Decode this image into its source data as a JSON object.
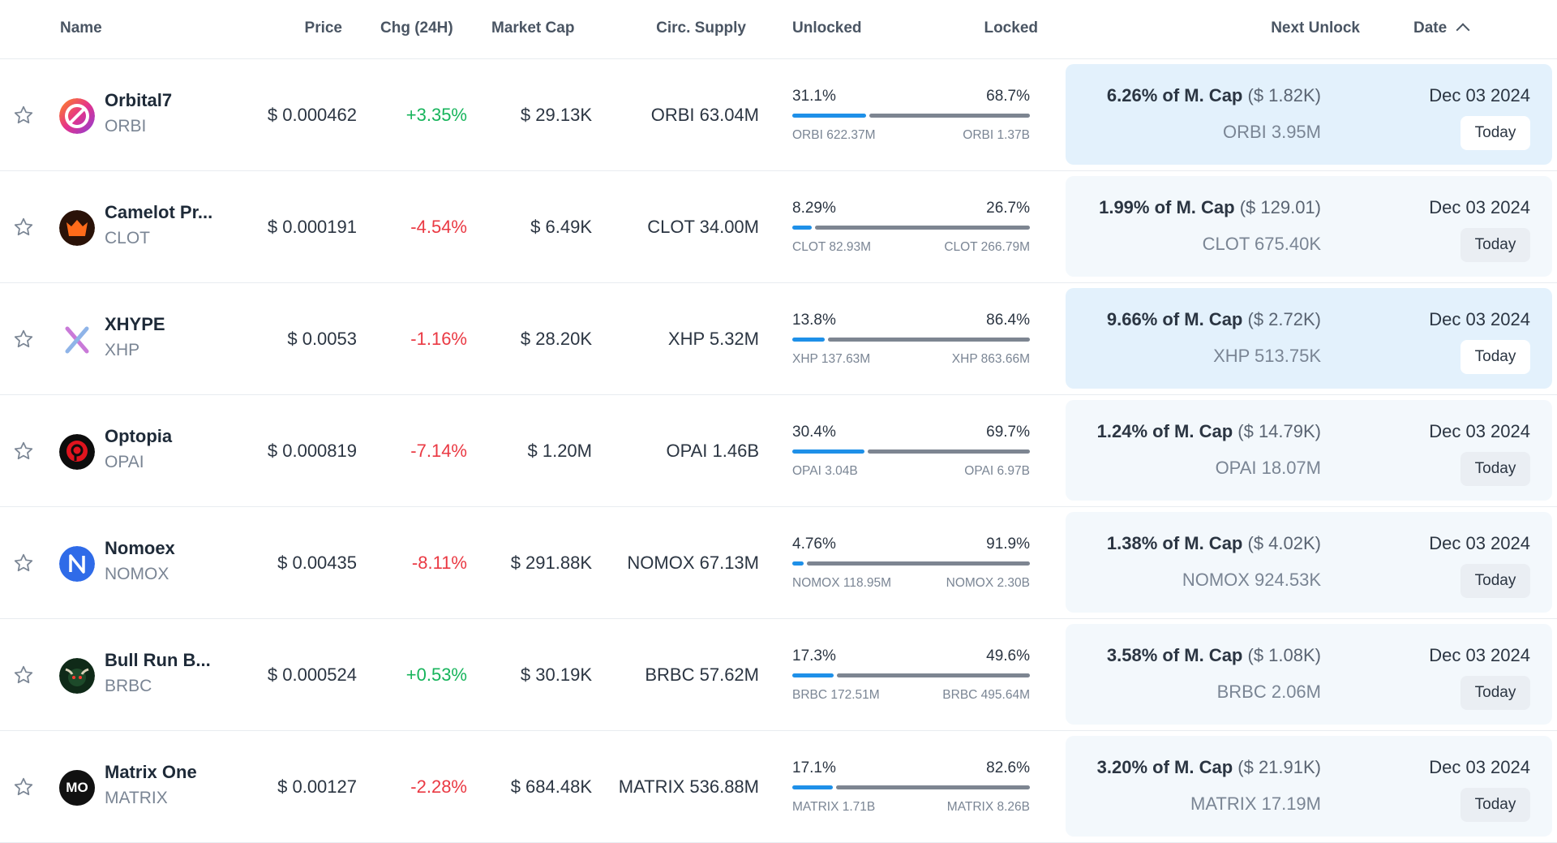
{
  "header": {
    "name": "Name",
    "price": "Price",
    "chg": "Chg (24H)",
    "market_cap": "Market Cap",
    "circ_supply": "Circ. Supply",
    "unlocked": "Unlocked",
    "locked": "Locked",
    "next_unlock": "Next Unlock",
    "date": "Date"
  },
  "colors": {
    "positive": "#16b45b",
    "negative": "#ea3943",
    "unlocked_bar": "#1e90e8",
    "locked_bar": "#7d8591",
    "highlight_card": "#e3f1fc",
    "card": "#f3f8fc"
  },
  "rows": [
    {
      "name": "Orbital7",
      "symbol": "ORBI",
      "price": "$ 0.000462",
      "chg": "+3.35%",
      "chg_dir": "pos",
      "market_cap": "$ 29.13K",
      "circ_supply": "ORBI 63.04M",
      "unlocked_pct": "31.1%",
      "locked_pct": "68.7%",
      "unlocked_frac": 0.311,
      "locked_frac": 0.687,
      "unlocked_amt": "ORBI 622.37M",
      "locked_amt": "ORBI 1.37B",
      "next_pct": "6.26% of M. Cap",
      "next_usd": "($ 1.82K)",
      "next_tokens": "ORBI 3.95M",
      "date": "Dec 03 2024",
      "when": "Today",
      "highlight": true,
      "icon": "orbital7-logo-icon"
    },
    {
      "name": "Camelot Pr...",
      "symbol": "CLOT",
      "price": "$ 0.000191",
      "chg": "-4.54%",
      "chg_dir": "neg",
      "market_cap": "$ 6.49K",
      "circ_supply": "CLOT 34.00M",
      "unlocked_pct": "8.29%",
      "locked_pct": "26.7%",
      "unlocked_frac": 0.0829,
      "locked_frac": 0.267,
      "unlocked_amt": "CLOT 82.93M",
      "locked_amt": "CLOT 266.79M",
      "next_pct": "1.99% of M. Cap",
      "next_usd": "($ 129.01)",
      "next_tokens": "CLOT 675.40K",
      "date": "Dec 03 2024",
      "when": "Today",
      "highlight": false,
      "icon": "camelot-logo-icon"
    },
    {
      "name": "XHYPE",
      "symbol": "XHP",
      "price": "$ 0.0053",
      "chg": "-1.16%",
      "chg_dir": "neg",
      "market_cap": "$ 28.20K",
      "circ_supply": "XHP 5.32M",
      "unlocked_pct": "13.8%",
      "locked_pct": "86.4%",
      "unlocked_frac": 0.138,
      "locked_frac": 0.864,
      "unlocked_amt": "XHP 137.63M",
      "locked_amt": "XHP 863.66M",
      "next_pct": "9.66% of M. Cap",
      "next_usd": "($ 2.72K)",
      "next_tokens": "XHP 513.75K",
      "date": "Dec 03 2024",
      "when": "Today",
      "highlight": true,
      "icon": "xhype-logo-icon"
    },
    {
      "name": "Optopia",
      "symbol": "OPAI",
      "price": "$ 0.000819",
      "chg": "-7.14%",
      "chg_dir": "neg",
      "market_cap": "$ 1.20M",
      "circ_supply": "OPAI 1.46B",
      "unlocked_pct": "30.4%",
      "locked_pct": "69.7%",
      "unlocked_frac": 0.304,
      "locked_frac": 0.697,
      "unlocked_amt": "OPAI 3.04B",
      "locked_amt": "OPAI 6.97B",
      "next_pct": "1.24% of M. Cap",
      "next_usd": "($ 14.79K)",
      "next_tokens": "OPAI 18.07M",
      "date": "Dec 03 2024",
      "when": "Today",
      "highlight": false,
      "icon": "optopia-logo-icon"
    },
    {
      "name": "Nomoex",
      "symbol": "NOMOX",
      "price": "$ 0.00435",
      "chg": "-8.11%",
      "chg_dir": "neg",
      "market_cap": "$ 291.88K",
      "circ_supply": "NOMOX 67.13M",
      "unlocked_pct": "4.76%",
      "locked_pct": "91.9%",
      "unlocked_frac": 0.0476,
      "locked_frac": 0.919,
      "unlocked_amt": "NOMOX 118.95M",
      "locked_amt": "NOMOX 2.30B",
      "next_pct": "1.38% of M. Cap",
      "next_usd": "($ 4.02K)",
      "next_tokens": "NOMOX 924.53K",
      "date": "Dec 03 2024",
      "when": "Today",
      "highlight": false,
      "icon": "nomoex-logo-icon"
    },
    {
      "name": "Bull Run B...",
      "symbol": "BRBC",
      "price": "$ 0.000524",
      "chg": "+0.53%",
      "chg_dir": "pos",
      "market_cap": "$ 30.19K",
      "circ_supply": "BRBC 57.62M",
      "unlocked_pct": "17.3%",
      "locked_pct": "49.6%",
      "unlocked_frac": 0.173,
      "locked_frac": 0.496,
      "unlocked_amt": "BRBC 172.51M",
      "locked_amt": "BRBC 495.64M",
      "next_pct": "3.58% of M. Cap",
      "next_usd": "($ 1.08K)",
      "next_tokens": "BRBC 2.06M",
      "date": "Dec 03 2024",
      "when": "Today",
      "highlight": false,
      "icon": "bullrun-logo-icon"
    },
    {
      "name": "Matrix One",
      "symbol": "MATRIX",
      "price": "$ 0.00127",
      "chg": "-2.28%",
      "chg_dir": "neg",
      "market_cap": "$ 684.48K",
      "circ_supply": "MATRIX 536.88M",
      "unlocked_pct": "17.1%",
      "locked_pct": "82.6%",
      "unlocked_frac": 0.171,
      "locked_frac": 0.826,
      "unlocked_amt": "MATRIX 1.71B",
      "locked_amt": "MATRIX 8.26B",
      "next_pct": "3.20% of M. Cap",
      "next_usd": "($ 21.91K)",
      "next_tokens": "MATRIX 17.19M",
      "date": "Dec 03 2024",
      "when": "Today",
      "highlight": false,
      "icon": "matrix-logo-icon",
      "logo_text": "MO"
    }
  ]
}
